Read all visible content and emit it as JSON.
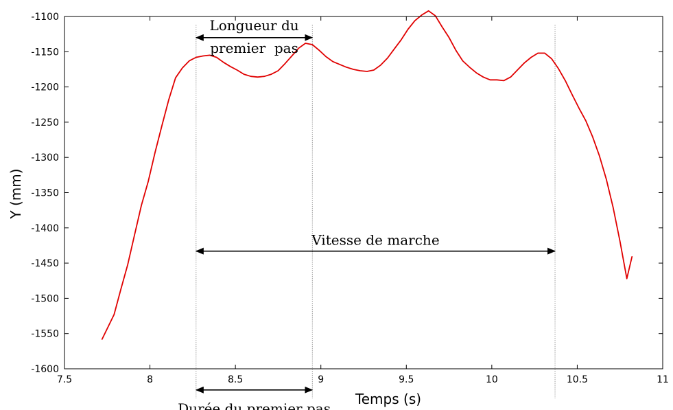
{
  "chart_data": {
    "type": "line",
    "title": "",
    "xlabel": "Temps (s)",
    "ylabel": "Y (mm)",
    "xlim": [
      7.5,
      11
    ],
    "ylim": [
      -1600,
      -1100
    ],
    "xticks": [
      7.5,
      8,
      8.5,
      9,
      9.5,
      10,
      10.5,
      11
    ],
    "xtick_labels": [
      "7.5",
      "8",
      "8.5",
      "9",
      "9.5",
      "10",
      "10.5",
      "11"
    ],
    "yticks": [
      -1600,
      -1550,
      -1500,
      -1450,
      -1400,
      -1350,
      -1300,
      -1250,
      -1200,
      -1150,
      -1100
    ],
    "ytick_labels": [
      "-1600",
      "-1550",
      "-1500",
      "-1450",
      "-1400",
      "-1350",
      "-1300",
      "-1250",
      "-1200",
      "-1150",
      "-1100"
    ],
    "grid": false,
    "series": [
      {
        "color": "#e00000",
        "x": [
          7.72,
          7.75,
          7.79,
          7.83,
          7.87,
          7.91,
          7.95,
          7.99,
          8.03,
          8.07,
          8.11,
          8.15,
          8.19,
          8.23,
          8.27,
          8.31,
          8.35,
          8.39,
          8.43,
          8.47,
          8.51,
          8.55,
          8.59,
          8.63,
          8.67,
          8.71,
          8.75,
          8.79,
          8.83,
          8.87,
          8.91,
          8.95,
          8.99,
          9.03,
          9.07,
          9.11,
          9.15,
          9.19,
          9.23,
          9.27,
          9.31,
          9.35,
          9.39,
          9.43,
          9.47,
          9.51,
          9.55,
          9.59,
          9.63,
          9.67,
          9.71,
          9.75,
          9.79,
          9.83,
          9.87,
          9.91,
          9.95,
          9.99,
          10.03,
          10.07,
          10.11,
          10.15,
          10.19,
          10.23,
          10.27,
          10.31,
          10.35,
          10.39,
          10.43,
          10.47,
          10.51,
          10.55,
          10.59,
          10.63,
          10.67,
          10.71,
          10.75,
          10.79,
          10.82
        ],
        "y": [
          -1558,
          -1543,
          -1523,
          -1487,
          -1452,
          -1410,
          -1368,
          -1334,
          -1293,
          -1255,
          -1218,
          -1187,
          -1173,
          -1163,
          -1158,
          -1156,
          -1155,
          -1158,
          -1165,
          -1171,
          -1176,
          -1182,
          -1185,
          -1186,
          -1185,
          -1182,
          -1177,
          -1167,
          -1156,
          -1145,
          -1138,
          -1140,
          -1148,
          -1157,
          -1164,
          -1168,
          -1172,
          -1175,
          -1177,
          -1178,
          -1176,
          -1169,
          -1159,
          -1146,
          -1133,
          -1118,
          -1106,
          -1098,
          -1092,
          -1099,
          -1115,
          -1130,
          -1148,
          -1163,
          -1172,
          -1180,
          -1186,
          -1190,
          -1190,
          -1191,
          -1186,
          -1176,
          -1166,
          -1158,
          -1152,
          -1152,
          -1160,
          -1174,
          -1191,
          -1211,
          -1230,
          -1248,
          -1271,
          -1298,
          -1331,
          -1371,
          -1419,
          -1472,
          -1441
        ]
      }
    ],
    "annotations": [
      {
        "type": "double-arrow",
        "label_lines": [
          "Longueur du",
          "premier  pas"
        ],
        "x_start": 8.27,
        "x_end": 8.95,
        "y_value": -1130
      },
      {
        "type": "double-arrow",
        "label_lines": [
          "Vitesse de marche"
        ],
        "x_start": 8.27,
        "x_end": 10.37,
        "y_value": -1433
      },
      {
        "type": "double-arrow",
        "label_lines": [
          "Durée du premier pas"
        ],
        "x_start": 8.27,
        "x_end": 8.95,
        "y_value": -1630
      }
    ],
    "reference_lines_x": [
      8.27,
      8.95,
      10.37
    ]
  }
}
